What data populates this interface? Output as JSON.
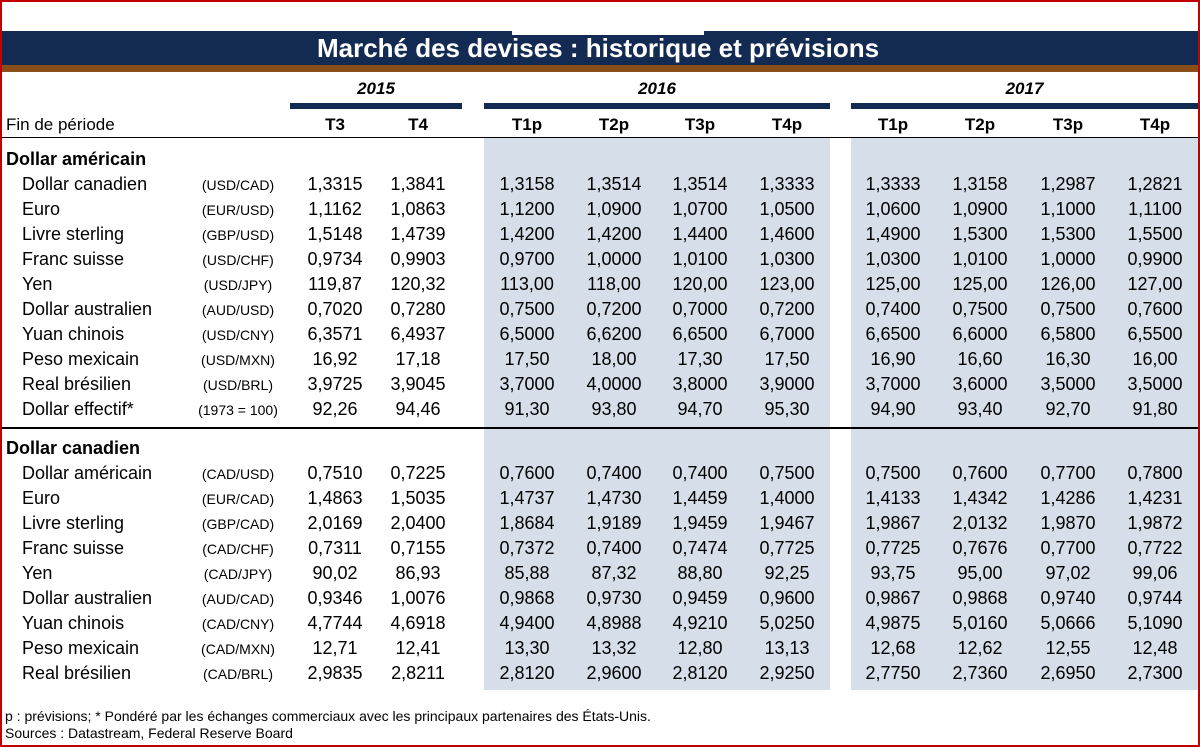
{
  "title": "Marché des devises : historique et prévisions",
  "header": {
    "years": [
      "2015",
      "2016",
      "2017"
    ],
    "period_label": "Fin de période",
    "columns": [
      "T3",
      "T4",
      "T1p",
      "T2p",
      "T3p",
      "T4p",
      "T1p",
      "T2p",
      "T3p",
      "T4p"
    ]
  },
  "sections": [
    {
      "title": "Dollar américain",
      "rows": [
        {
          "name": "Dollar canadien",
          "code": "(USD/CAD)",
          "values": [
            "1,3315",
            "1,3841",
            "1,3158",
            "1,3514",
            "1,3514",
            "1,3333",
            "1,3333",
            "1,3158",
            "1,2987",
            "1,2821"
          ]
        },
        {
          "name": "Euro",
          "code": "(EUR/USD)",
          "values": [
            "1,1162",
            "1,0863",
            "1,1200",
            "1,0900",
            "1,0700",
            "1,0500",
            "1,0600",
            "1,0900",
            "1,1000",
            "1,1100"
          ]
        },
        {
          "name": "Livre sterling",
          "code": "(GBP/USD)",
          "values": [
            "1,5148",
            "1,4739",
            "1,4200",
            "1,4200",
            "1,4400",
            "1,4600",
            "1,4900",
            "1,5300",
            "1,5300",
            "1,5500"
          ]
        },
        {
          "name": "Franc suisse",
          "code": "(USD/CHF)",
          "values": [
            "0,9734",
            "0,9903",
            "0,9700",
            "1,0000",
            "1,0100",
            "1,0300",
            "1,0300",
            "1,0100",
            "1,0000",
            "0,9900"
          ]
        },
        {
          "name": "Yen",
          "code": "(USD/JPY)",
          "values": [
            "119,87",
            "120,32",
            "113,00",
            "118,00",
            "120,00",
            "123,00",
            "125,00",
            "125,00",
            "126,00",
            "127,00"
          ]
        },
        {
          "name": "Dollar australien",
          "code": "(AUD/USD)",
          "values": [
            "0,7020",
            "0,7280",
            "0,7500",
            "0,7200",
            "0,7000",
            "0,7200",
            "0,7400",
            "0,7500",
            "0,7500",
            "0,7600"
          ]
        },
        {
          "name": "Yuan chinois",
          "code": "(USD/CNY)",
          "values": [
            "6,3571",
            "6,4937",
            "6,5000",
            "6,6200",
            "6,6500",
            "6,7000",
            "6,6500",
            "6,6000",
            "6,5800",
            "6,5500"
          ]
        },
        {
          "name": "Peso mexicain",
          "code": "(USD/MXN)",
          "values": [
            "16,92",
            "17,18",
            "17,50",
            "18,00",
            "17,30",
            "17,50",
            "16,90",
            "16,60",
            "16,30",
            "16,00"
          ]
        },
        {
          "name": "Real brésilien",
          "code": "(USD/BRL)",
          "values": [
            "3,9725",
            "3,9045",
            "3,7000",
            "4,0000",
            "3,8000",
            "3,9000",
            "3,7000",
            "3,6000",
            "3,5000",
            "3,5000"
          ]
        },
        {
          "name": "Dollar effectif*",
          "code": "(1973 = 100)",
          "values": [
            "92,26",
            "94,46",
            "91,30",
            "93,80",
            "94,70",
            "95,30",
            "94,90",
            "93,40",
            "92,70",
            "91,80"
          ]
        }
      ]
    },
    {
      "title": "Dollar canadien",
      "rows": [
        {
          "name": "Dollar américain",
          "code": "(CAD/USD)",
          "values": [
            "0,7510",
            "0,7225",
            "0,7600",
            "0,7400",
            "0,7400",
            "0,7500",
            "0,7500",
            "0,7600",
            "0,7700",
            "0,7800"
          ]
        },
        {
          "name": "Euro",
          "code": "(EUR/CAD)",
          "values": [
            "1,4863",
            "1,5035",
            "1,4737",
            "1,4730",
            "1,4459",
            "1,4000",
            "1,4133",
            "1,4342",
            "1,4286",
            "1,4231"
          ]
        },
        {
          "name": "Livre sterling",
          "code": "(GBP/CAD)",
          "values": [
            "2,0169",
            "2,0400",
            "1,8684",
            "1,9189",
            "1,9459",
            "1,9467",
            "1,9867",
            "2,0132",
            "1,9870",
            "1,9872"
          ]
        },
        {
          "name": "Franc suisse",
          "code": "(CAD/CHF)",
          "values": [
            "0,7311",
            "0,7155",
            "0,7372",
            "0,7400",
            "0,7474",
            "0,7725",
            "0,7725",
            "0,7676",
            "0,7700",
            "0,7722"
          ]
        },
        {
          "name": "Yen",
          "code": "(CAD/JPY)",
          "values": [
            "90,02",
            "86,93",
            "85,88",
            "87,32",
            "88,80",
            "92,25",
            "93,75",
            "95,00",
            "97,02",
            "99,06"
          ]
        },
        {
          "name": "Dollar australien",
          "code": "(AUD/CAD)",
          "values": [
            "0,9346",
            "1,0076",
            "0,9868",
            "0,9730",
            "0,9459",
            "0,9600",
            "0,9867",
            "0,9868",
            "0,9740",
            "0,9744"
          ]
        },
        {
          "name": "Yuan chinois",
          "code": "(CAD/CNY)",
          "values": [
            "4,7744",
            "4,6918",
            "4,9400",
            "4,8988",
            "4,9210",
            "5,0250",
            "4,9875",
            "5,0160",
            "5,0666",
            "5,1090"
          ]
        },
        {
          "name": "Peso mexicain",
          "code": "(CAD/MXN)",
          "values": [
            "12,71",
            "12,41",
            "13,30",
            "13,32",
            "12,80",
            "13,13",
            "12,68",
            "12,62",
            "12,55",
            "12,48"
          ]
        },
        {
          "name": "Real brésilien",
          "code": "(CAD/BRL)",
          "values": [
            "2,9835",
            "2,8211",
            "2,8120",
            "2,9600",
            "2,8120",
            "2,9250",
            "2,7750",
            "2,7360",
            "2,6950",
            "2,7300"
          ]
        }
      ]
    }
  ],
  "footnotes": [
    "p : prévisions; * Pondéré par les échanges commerciaux avec les principaux partenaires des États-Unis.",
    "Sources : Datastream, Federal Reserve Board"
  ]
}
